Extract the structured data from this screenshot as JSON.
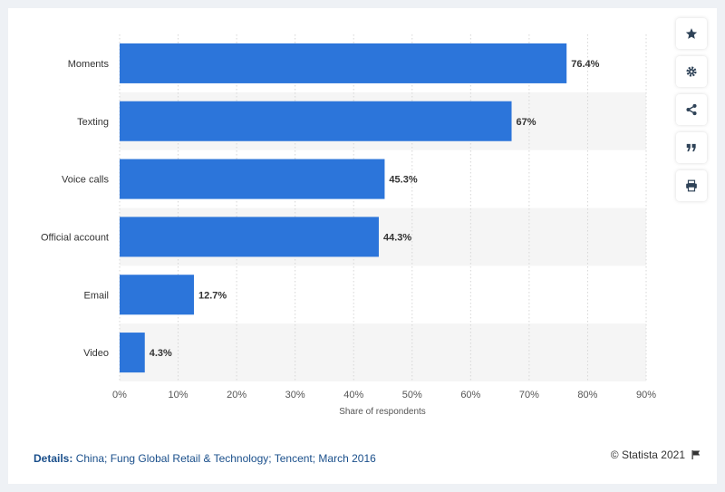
{
  "chart_data": {
    "type": "bar",
    "orientation": "horizontal",
    "categories": [
      "Moments",
      "Texting",
      "Voice calls",
      "Official account",
      "Email",
      "Video"
    ],
    "values": [
      76.4,
      67,
      45.3,
      44.3,
      12.7,
      4.3
    ],
    "data_labels": [
      "76.4%",
      "67%",
      "45.3%",
      "44.3%",
      "12.7%",
      "4.3%"
    ],
    "xlabel": "Share of respondents",
    "xlim": [
      0,
      90
    ],
    "x_ticks": [
      "0%",
      "10%",
      "20%",
      "30%",
      "40%",
      "50%",
      "60%",
      "70%",
      "80%",
      "90%"
    ],
    "grid": true,
    "bar_color": "#2c75da"
  },
  "footer": {
    "details_label": "Details:",
    "details_text": "China; Fung Global Retail & Technology; Tencent; March 2016",
    "copyright": "© Statista 2021"
  },
  "toolbar": {
    "icons": [
      "star-icon",
      "gear-icon",
      "share-icon",
      "quote-icon",
      "print-icon"
    ]
  }
}
